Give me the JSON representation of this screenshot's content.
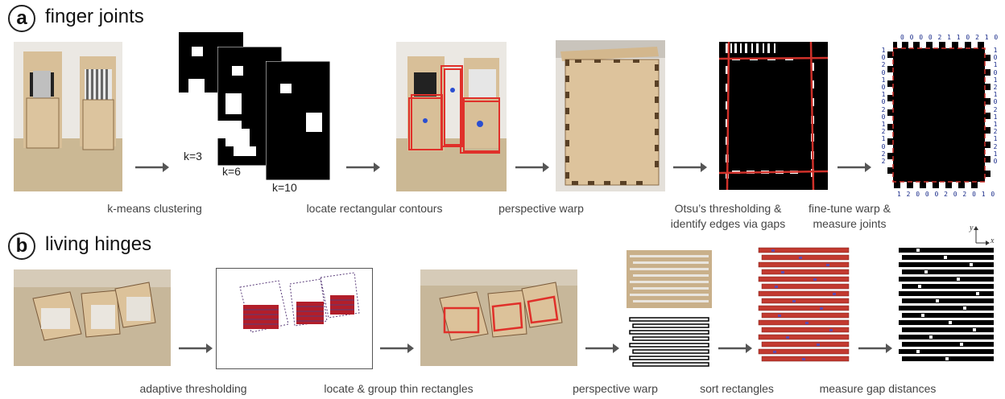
{
  "section_a": {
    "badge": "a",
    "title": "finger joints",
    "k_labels": [
      "k=3",
      "k=6",
      "k=10"
    ],
    "captions": {
      "kmeans": "k-means clustering",
      "contours": "locate rectangular contours",
      "warp": "perspective warp",
      "otsu_line1": "Otsu’s thresholding &",
      "otsu_line2": "identify edges via gaps",
      "finetune_line1": "fine-tune warp &",
      "finetune_line2": "measure joints"
    },
    "joint_digits": {
      "top": "0 0 0 0 2 1 1 0 2 1 0",
      "bottom": "1 2 0 0 0 2 0 2 0 1 0",
      "left": [
        "1",
        "0",
        "2",
        "0",
        "1",
        "0",
        "1",
        "0",
        "2",
        "0",
        "1",
        "2",
        "1",
        "0",
        "2",
        "2"
      ],
      "right": [
        "1",
        "0",
        "1",
        "0",
        "1",
        "2",
        "1",
        "0",
        "2",
        "1",
        "1",
        "2",
        "1",
        "2",
        "1",
        "0"
      ]
    }
  },
  "section_b": {
    "badge": "b",
    "title": "living hinges",
    "axis_labels": {
      "y": "y",
      "x": "x"
    },
    "captions": {
      "adaptive": "adaptive thresholding",
      "group": "locate & group thin rectangles",
      "warp": "perspective warp",
      "sort": "sort rectangles",
      "measure": "measure gap distances"
    }
  },
  "colors": {
    "contour_red": "#e0302a",
    "digit_blue": "#1a2c8a",
    "wood": "#d9c09a",
    "table": "#c9b89a",
    "wall": "#e9e6e1"
  }
}
